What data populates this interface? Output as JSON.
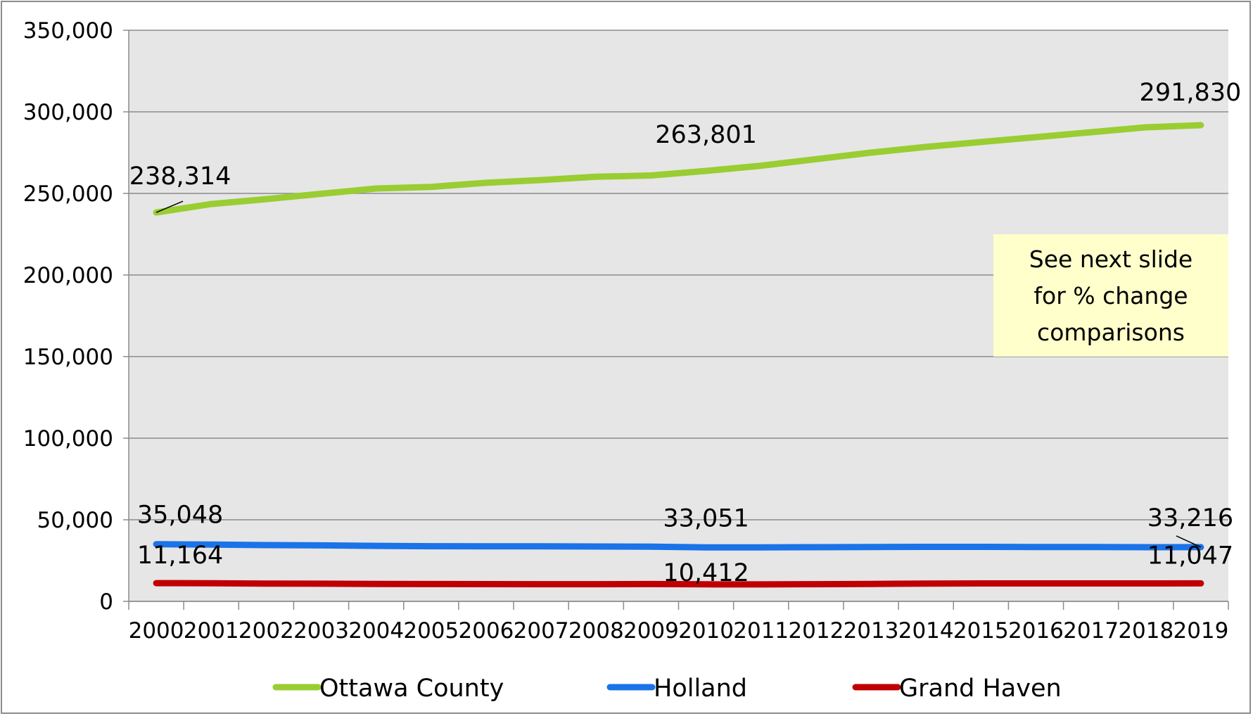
{
  "chart_data": {
    "type": "line",
    "title": "",
    "xlabel": "",
    "ylabel": "",
    "categories": [
      "2000",
      "2001",
      "2002",
      "2003",
      "2004",
      "2005",
      "2006",
      "2007",
      "2008",
      "2009",
      "2010",
      "2011",
      "2012",
      "2013",
      "2014",
      "2015",
      "2016",
      "2017",
      "2018",
      "2019"
    ],
    "ylim": [
      0,
      350000
    ],
    "y_ticks": [
      {
        "value": 0,
        "label": "0"
      },
      {
        "value": 50000,
        "label": "50,000"
      },
      {
        "value": 100000,
        "label": "100,000"
      },
      {
        "value": 150000,
        "label": "150,000"
      },
      {
        "value": 200000,
        "label": "200,000"
      },
      {
        "value": 250000,
        "label": "250,000"
      },
      {
        "value": 300000,
        "label": "300,000"
      },
      {
        "value": 350000,
        "label": "350,000"
      }
    ],
    "grid": true,
    "legend_position": "bottom",
    "series": [
      {
        "name": "Ottawa County",
        "color": "#9acd32",
        "values": [
          238314,
          243500,
          246500,
          249800,
          253000,
          254000,
          256500,
          258200,
          260200,
          261000,
          263801,
          267000,
          271000,
          275000,
          278500,
          281500,
          284500,
          287500,
          290500,
          291830
        ],
        "labels": [
          {
            "index": 0,
            "text": "238,314"
          },
          {
            "index": 10,
            "text": "263,801"
          },
          {
            "index": 19,
            "text": "291,830"
          }
        ]
      },
      {
        "name": "Holland",
        "color": "#1a73e8",
        "values": [
          35048,
          34800,
          34500,
          34300,
          34000,
          33800,
          33700,
          33700,
          33600,
          33500,
          33051,
          33100,
          33200,
          33300,
          33400,
          33400,
          33300,
          33300,
          33200,
          33216
        ],
        "labels": [
          {
            "index": 0,
            "text": "35,048"
          },
          {
            "index": 10,
            "text": "33,051"
          },
          {
            "index": 19,
            "text": "33,216"
          }
        ]
      },
      {
        "name": "Grand Haven",
        "color": "#c00000",
        "values": [
          11164,
          11100,
          10900,
          10800,
          10700,
          10600,
          10550,
          10500,
          10500,
          10600,
          10412,
          10400,
          10500,
          10700,
          10900,
          11000,
          11000,
          11000,
          11000,
          11047
        ],
        "labels": [
          {
            "index": 0,
            "text": "11,164"
          },
          {
            "index": 10,
            "text": "10,412"
          },
          {
            "index": 19,
            "text": "11,047"
          }
        ]
      }
    ],
    "annotation": {
      "lines": [
        "See next slide",
        "for % change",
        "comparisons"
      ],
      "background": "#ffffcc"
    },
    "plot_background": "#e6e6e6"
  }
}
